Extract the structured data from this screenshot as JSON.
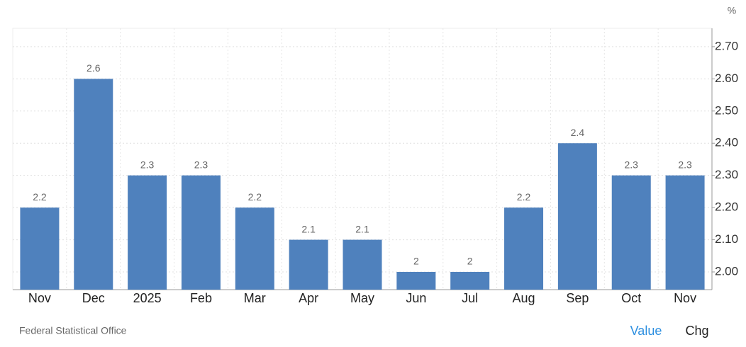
{
  "chart_data": {
    "type": "bar",
    "unit": "%",
    "categories": [
      "Nov",
      "Dec",
      "2025",
      "Feb",
      "Mar",
      "Apr",
      "May",
      "Jun",
      "Jul",
      "Aug",
      "Sep",
      "Oct",
      "Nov"
    ],
    "values": [
      2.2,
      2.6,
      2.3,
      2.3,
      2.2,
      2.1,
      2.1,
      2,
      2,
      2.2,
      2.4,
      2.3,
      2.3
    ],
    "color": "#4f81bd",
    "ylim": [
      1.945,
      2.757
    ],
    "yticks": [
      {
        "value": 2.0,
        "label": "2.00"
      },
      {
        "value": 2.1,
        "label": "2.10"
      },
      {
        "value": 2.2,
        "label": "2.20"
      },
      {
        "value": 2.3,
        "label": "2.30"
      },
      {
        "value": 2.4,
        "label": "2.40"
      },
      {
        "value": 2.5,
        "label": "2.50"
      },
      {
        "value": 2.6,
        "label": "2.60"
      },
      {
        "value": 2.7,
        "label": "2.70"
      }
    ],
    "grid": true,
    "source": "Federal Statistical Office"
  },
  "controls": [
    "Value",
    "Chg"
  ]
}
